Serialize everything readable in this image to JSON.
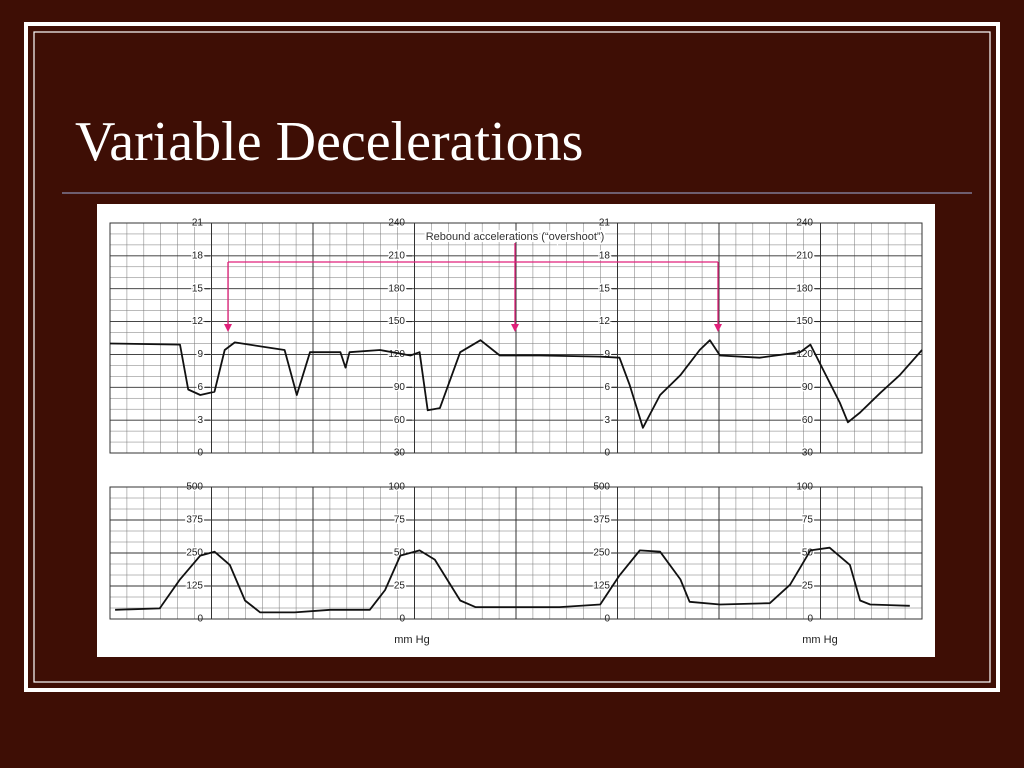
{
  "title": "Variable Decelerations",
  "annotation": "Rebound accelerations (“overshoot”)",
  "chart_data": [
    {
      "type": "line",
      "xlim": [
        0,
        8
      ],
      "x": [
        0.0,
        0.69,
        0.77,
        0.89,
        1.03,
        1.13,
        1.23,
        1.58,
        1.72,
        1.84,
        1.97,
        2.27,
        2.32,
        2.36,
        2.66,
        2.96,
        3.05,
        3.13,
        3.25,
        3.45,
        3.65,
        3.84,
        4.24,
        4.83,
        5.02,
        5.12,
        5.25,
        5.42,
        5.62,
        5.81,
        5.91,
        6.01,
        6.4,
        6.8,
        6.9,
        7.19,
        7.27,
        7.39,
        7.59,
        7.78,
        8.0
      ],
      "series": [
        {
          "color": "#111111",
          "values": [
            130,
            129,
            88,
            83,
            86,
            124,
            131,
            126,
            124,
            83,
            122,
            122,
            108,
            122,
            124,
            119,
            122,
            69,
            71,
            122,
            133,
            119,
            119,
            118,
            117,
            92,
            53,
            83,
            101,
            124,
            133,
            119,
            117,
            122,
            129,
            76,
            58,
            67,
            85,
            101,
            124
          ]
        }
      ],
      "ylim": [
        30,
        240
      ],
      "yticks": [
        30,
        60,
        90,
        120,
        150,
        180,
        210,
        240
      ],
      "y2lim": [
        0,
        21
      ],
      "y2ticks": [
        0,
        3,
        6,
        9,
        12,
        15,
        18,
        21
      ],
      "grid": true
    },
    {
      "type": "line",
      "xlim": [
        0,
        8
      ],
      "x": [
        0.05,
        0.49,
        0.69,
        0.89,
        1.03,
        1.18,
        1.33,
        1.48,
        1.82,
        2.17,
        2.56,
        2.71,
        2.86,
        3.05,
        3.2,
        3.45,
        3.6,
        4.04,
        4.43,
        4.83,
        5.02,
        5.22,
        5.42,
        5.62,
        5.71,
        6.01,
        6.5,
        6.7,
        6.9,
        7.09,
        7.29,
        7.39,
        7.49,
        7.88
      ],
      "series": [
        {
          "color": "#111111",
          "values": [
            7,
            8,
            30,
            48,
            51,
            41,
            14,
            5,
            5,
            7,
            7,
            22,
            48,
            52,
            45,
            14,
            9,
            9,
            9,
            11,
            33,
            52,
            51,
            30,
            13,
            11,
            12,
            26,
            52,
            54,
            41,
            14,
            11,
            10
          ]
        }
      ],
      "ylim": [
        0,
        100
      ],
      "yticks": [
        0,
        25,
        50,
        75,
        100
      ],
      "y2lim": [
        0,
        500
      ],
      "y2ticks": [
        0,
        125,
        250,
        375,
        500
      ],
      "ylabel": "mm Hg",
      "grid": true
    }
  ]
}
